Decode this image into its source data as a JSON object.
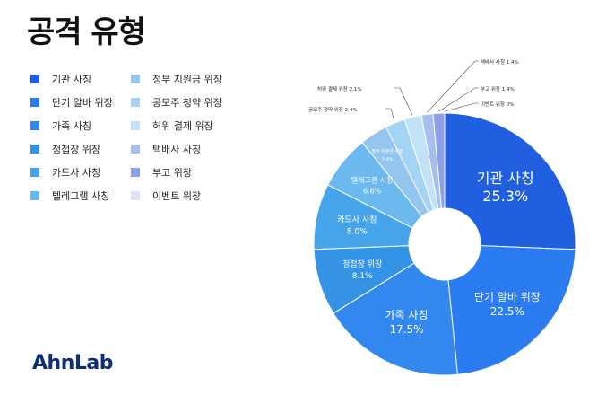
{
  "title": "공격 유형",
  "brand": "AhnLab",
  "chart_data": {
    "type": "pie",
    "donut": true,
    "title": "공격 유형",
    "slices": [
      {
        "label": "기관 사칭",
        "value": 25.3,
        "display": "25.3%",
        "color": "#1f5fe0"
      },
      {
        "label": "단기 알바 위장",
        "value": 22.5,
        "display": "22.5%",
        "color": "#2a7cf0"
      },
      {
        "label": "가족 사칭",
        "value": 17.5,
        "display": "17.5%",
        "color": "#3288ee"
      },
      {
        "label": "청첩장 위장",
        "value": 8.1,
        "display": "8.1%",
        "color": "#3593e6"
      },
      {
        "label": "카드사 사칭",
        "value": 8.0,
        "display": "8.0%",
        "color": "#46a5ea"
      },
      {
        "label": "텔레그램 사칭",
        "value": 6.6,
        "display": "6.6%",
        "color": "#6cb9ef"
      },
      {
        "label": "정부 지원금 위장",
        "value": 3.4,
        "display": "3.4%",
        "color": "#93c5ef"
      },
      {
        "label": "공모주 청약 위장",
        "value": 2.4,
        "display": "2.4%",
        "color": "#a4d3f3"
      },
      {
        "label": "허위 결제 위장",
        "value": 2.1,
        "display": "2.1%",
        "color": "#c2e2f7"
      },
      {
        "label": "택배사 사칭",
        "value": 1.4,
        "display": "1.4%",
        "color": "#a6bfee"
      },
      {
        "label": "부고 위장",
        "value": 1.4,
        "display": "1.4%",
        "color": "#8ea0e8"
      },
      {
        "label": "이벤트 위장",
        "value": 0.0,
        "display": "0%",
        "color": "#dde3f5"
      }
    ],
    "legend_position": "left"
  }
}
